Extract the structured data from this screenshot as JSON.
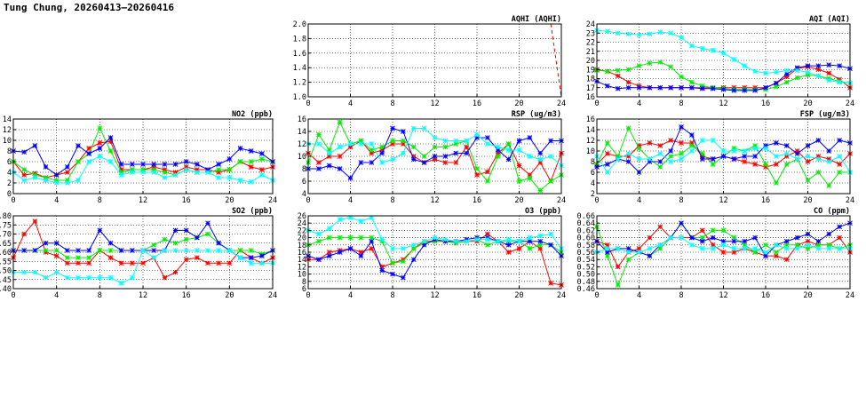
{
  "page": {
    "title": "Tung Chung, 20260413–20260416"
  },
  "colors": {
    "day1": "#ff0000",
    "day2": "#00ee00",
    "day3": "#0000ff",
    "day4": "#00ffff",
    "aqhi": "#ff0000"
  },
  "chart_data": [
    {
      "id": "aqhi",
      "type": "line",
      "title": "AQHI (AQHI)",
      "xlim": [
        0,
        24
      ],
      "xticks": [
        0,
        4,
        8,
        12,
        16,
        20,
        24
      ],
      "ylim": [
        1.0,
        2.0
      ],
      "yticks": [
        "1.0",
        "1.2",
        "1.4",
        "1.6",
        "1.8",
        "2.0"
      ],
      "grid": true,
      "series": [
        {
          "color_key": "aqhi",
          "dashed": true,
          "x": [
            0,
            1,
            2,
            3,
            4,
            5,
            6,
            7,
            8,
            9,
            10,
            11,
            12,
            13,
            14,
            15,
            16,
            17,
            18,
            19,
            20,
            21,
            22,
            23,
            24
          ],
          "values": [
            2,
            2,
            2,
            2,
            2,
            2,
            2,
            2,
            2,
            2,
            2,
            2,
            2,
            2,
            2,
            2,
            2,
            2,
            2,
            2,
            2,
            2,
            2,
            2,
            1
          ]
        }
      ]
    },
    {
      "id": "aqi",
      "type": "line",
      "title": "AQI (AQI)",
      "xlim": [
        0,
        24
      ],
      "xticks": [
        0,
        4,
        8,
        12,
        16,
        20,
        24
      ],
      "ylim": [
        16,
        24
      ],
      "yticks": [
        "16",
        "17",
        "18",
        "19",
        "20",
        "21",
        "22",
        "23",
        "24"
      ],
      "grid": true,
      "series": [
        {
          "color_key": "day1",
          "values": [
            19,
            18.8,
            18.3,
            17.6,
            17.2,
            17,
            17,
            17,
            17,
            17,
            17,
            17,
            17,
            17,
            17,
            17,
            17,
            17.5,
            18.2,
            19.1,
            19.3,
            19,
            18.6,
            17.9,
            17
          ]
        },
        {
          "color_key": "day2",
          "values": [
            18.9,
            18.8,
            18.9,
            19,
            19.4,
            19.7,
            19.8,
            19.3,
            18.2,
            17.6,
            17.2,
            17,
            16.9,
            16.8,
            16.8,
            16.8,
            16.8,
            17.1,
            17.6,
            18.1,
            18.4,
            18.3,
            18,
            17.7,
            17.5
          ]
        },
        {
          "color_key": "day3",
          "values": [
            17.7,
            17.2,
            16.9,
            17,
            17,
            17,
            17,
            17,
            17,
            17,
            16.9,
            16.9,
            16.8,
            16.7,
            16.7,
            16.7,
            17,
            17.5,
            18.5,
            19.2,
            19.4,
            19.4,
            19.5,
            19.4,
            19.1
          ]
        },
        {
          "color_key": "day4",
          "values": [
            23.3,
            23.2,
            23,
            22.9,
            22.8,
            22.9,
            23.1,
            23,
            22.5,
            21.6,
            21.3,
            21.1,
            20.8,
            20.1,
            19.4,
            18.8,
            18.6,
            18.7,
            18.9,
            18.9,
            18.7,
            18.3,
            17.8,
            17.6,
            17.5
          ]
        }
      ]
    },
    {
      "id": "no2",
      "type": "line",
      "title": "NO2 (ppb)",
      "xlim": [
        0,
        24
      ],
      "xticks": [
        0,
        4,
        8,
        12,
        16,
        20,
        24
      ],
      "ylim": [
        0,
        14
      ],
      "yticks": [
        "0",
        "2",
        "4",
        "6",
        "8",
        "10",
        "12",
        "14"
      ],
      "grid": true,
      "series": [
        {
          "color_key": "day1",
          "values": [
            6,
            3.5,
            3.8,
            3,
            3.5,
            4,
            6,
            8.5,
            9.5,
            9.8,
            4.5,
            4.5,
            4.5,
            5,
            4.5,
            4,
            5,
            4.5,
            4.5,
            4,
            4.5,
            6,
            5,
            4.5,
            5
          ]
        },
        {
          "color_key": "day2",
          "values": [
            6,
            4.5,
            3.5,
            3,
            2.5,
            2.5,
            6,
            7.5,
            12.3,
            8,
            4,
            4.5,
            4.5,
            4.5,
            4,
            3.5,
            4.5,
            4,
            4,
            4.5,
            4.5,
            6,
            6,
            6.5,
            6
          ]
        },
        {
          "color_key": "day3",
          "values": [
            8,
            7.8,
            9,
            5,
            3.5,
            5,
            9,
            7.5,
            8.5,
            10.5,
            5.5,
            5.5,
            5.5,
            5.5,
            5.5,
            5.5,
            6,
            5.5,
            4.5,
            5.5,
            6.5,
            8.5,
            8,
            7.5,
            6
          ]
        },
        {
          "color_key": "day4",
          "values": [
            4,
            2.5,
            3,
            2.5,
            2,
            2,
            2.5,
            6,
            7,
            6,
            3.5,
            4,
            4,
            4,
            3,
            3.5,
            4.5,
            4,
            4,
            3,
            3,
            2.5,
            2.2,
            3.5,
            2.5
          ]
        }
      ]
    },
    {
      "id": "rsp",
      "type": "line",
      "title": "RSP (ug/m3)",
      "xlim": [
        0,
        24
      ],
      "xticks": [
        0,
        4,
        8,
        12,
        16,
        20,
        24
      ],
      "ylim": [
        4,
        16
      ],
      "yticks": [
        "4",
        "6",
        "8",
        "10",
        "12",
        "14",
        "16"
      ],
      "grid": true,
      "series": [
        {
          "color_key": "day1",
          "values": [
            10.5,
            9,
            10,
            10,
            11.5,
            12.5,
            10.5,
            11,
            12,
            12,
            10,
            9,
            9.5,
            9,
            9,
            11.5,
            7,
            7.5,
            10.5,
            12,
            8.5,
            7,
            9,
            6,
            10.5
          ]
        },
        {
          "color_key": "day2",
          "values": [
            9,
            13.5,
            11,
            15.5,
            12,
            12.5,
            11,
            11.5,
            12.5,
            12.5,
            11.5,
            10,
            11.5,
            11.5,
            12,
            12.5,
            8,
            6,
            10,
            12,
            6,
            6.5,
            4.5,
            6,
            7
          ]
        },
        {
          "color_key": "day3",
          "values": [
            8,
            8,
            8.5,
            8,
            6.5,
            9,
            9,
            10.5,
            14.5,
            14,
            9.5,
            9,
            10,
            10,
            10.5,
            10.5,
            13,
            13,
            11,
            9.5,
            12.5,
            13,
            10.5,
            12.5,
            12.5
          ]
        },
        {
          "color_key": "day4",
          "values": [
            12,
            12,
            10.5,
            11.5,
            12,
            12,
            12,
            9,
            9.5,
            10.5,
            14.5,
            14.5,
            13,
            12.5,
            12.5,
            12.5,
            13.5,
            12,
            11.5,
            11,
            11,
            10,
            9.5,
            10,
            8.5
          ]
        }
      ]
    },
    {
      "id": "fsp",
      "type": "line",
      "title": "FSP (ug/m3)",
      "xlim": [
        0,
        24
      ],
      "xticks": [
        0,
        4,
        8,
        12,
        16,
        20,
        24
      ],
      "ylim": [
        2,
        16
      ],
      "yticks": [
        "2",
        "4",
        "6",
        "8",
        "10",
        "12",
        "14",
        "16"
      ],
      "grid": true,
      "series": [
        {
          "color_key": "day1",
          "values": [
            7.5,
            9.5,
            9,
            9,
            11,
            11.5,
            11,
            12,
            11.5,
            11.5,
            9,
            8.5,
            9,
            8.5,
            8,
            7.5,
            7,
            7.5,
            9,
            10,
            8,
            9,
            8.5,
            7.5,
            9.5
          ]
        },
        {
          "color_key": "day2",
          "values": [
            7.5,
            11.5,
            9,
            14.3,
            10.5,
            8.5,
            7,
            9,
            9.5,
            11,
            9.5,
            7.5,
            9,
            10.5,
            10,
            11,
            7.5,
            4,
            7.5,
            8.5,
            4.5,
            6,
            3.5,
            6,
            6
          ]
        },
        {
          "color_key": "day3",
          "values": [
            7,
            7.5,
            8.5,
            8,
            6,
            8,
            8,
            10,
            14.5,
            13,
            8.5,
            8.5,
            9,
            8.5,
            9,
            9,
            11,
            11.5,
            11,
            9.5,
            11,
            12,
            10,
            12,
            11.5
          ]
        },
        {
          "color_key": "day4",
          "values": [
            9,
            6,
            8.5,
            9.5,
            8.5,
            8.5,
            9.5,
            8,
            8.5,
            10,
            12,
            12,
            10,
            10,
            10,
            10.5,
            10.5,
            9,
            9.5,
            8.5,
            9,
            8.5,
            8,
            9,
            6
          ]
        }
      ]
    },
    {
      "id": "so2",
      "type": "line",
      "title": "SO2 (ppb)",
      "xlim": [
        0,
        24
      ],
      "xticks": [
        0,
        4,
        8,
        12,
        16,
        20,
        24
      ],
      "ylim": [
        0.4,
        0.8
      ],
      "yticks": [
        "0.40",
        "0.45",
        "0.50",
        "0.55",
        "0.60",
        "0.65",
        "0.70",
        "0.75",
        "0.80"
      ],
      "grid": true,
      "series": [
        {
          "color_key": "day1",
          "values": [
            0.57,
            0.7,
            0.77,
            0.6,
            0.58,
            0.54,
            0.54,
            0.54,
            0.61,
            0.57,
            0.54,
            0.54,
            0.54,
            0.57,
            0.46,
            0.49,
            0.56,
            0.57,
            0.54,
            0.54,
            0.54,
            0.61,
            0.57,
            0.54,
            0.57
          ]
        },
        {
          "color_key": "day2",
          "values": [
            0.61,
            0.61,
            0.61,
            0.61,
            0.61,
            0.57,
            0.57,
            0.57,
            0.61,
            0.61,
            0.61,
            0.61,
            0.61,
            0.64,
            0.67,
            0.65,
            0.67,
            0.68,
            0.7,
            0.65,
            0.61,
            0.61,
            0.61,
            0.59,
            0.61
          ]
        },
        {
          "color_key": "day3",
          "values": [
            0.61,
            0.61,
            0.61,
            0.65,
            0.65,
            0.61,
            0.61,
            0.61,
            0.72,
            0.65,
            0.61,
            0.61,
            0.61,
            0.61,
            0.61,
            0.72,
            0.72,
            0.68,
            0.76,
            0.65,
            0.61,
            0.57,
            0.57,
            0.58,
            0.61
          ]
        },
        {
          "color_key": "day4",
          "values": [
            0.49,
            0.49,
            0.49,
            0.46,
            0.49,
            0.46,
            0.46,
            0.46,
            0.46,
            0.46,
            0.43,
            0.46,
            0.61,
            0.57,
            0.61,
            0.61,
            0.61,
            0.61,
            0.61,
            0.61,
            0.61,
            0.57,
            0.54,
            0.54,
            0.54
          ]
        }
      ]
    },
    {
      "id": "o3",
      "type": "line",
      "title": "O3 (ppb)",
      "xlim": [
        0,
        24
      ],
      "xticks": [
        0,
        4,
        8,
        12,
        16,
        20,
        24
      ],
      "ylim": [
        6,
        26
      ],
      "yticks": [
        "6",
        "8",
        "10",
        "12",
        "14",
        "16",
        "18",
        "20",
        "22",
        "24",
        "26"
      ],
      "grid": true,
      "series": [
        {
          "color_key": "day1",
          "values": [
            14,
            14,
            16,
            16.5,
            17,
            16,
            17,
            12,
            13,
            14,
            17,
            19,
            19,
            19,
            19,
            19,
            19,
            21,
            19,
            16,
            17,
            19,
            17,
            7.5,
            7
          ]
        },
        {
          "color_key": "day2",
          "values": [
            18,
            19,
            20,
            20,
            20,
            20,
            20,
            19,
            13,
            13.5,
            17,
            18.5,
            19,
            19,
            18.5,
            19,
            19.5,
            18,
            19,
            19,
            19,
            17,
            18,
            18,
            16
          ]
        },
        {
          "color_key": "day3",
          "values": [
            15,
            14,
            15,
            16,
            17,
            15,
            19,
            11,
            10,
            9,
            14,
            18,
            19.5,
            19,
            19,
            19.5,
            20,
            20,
            19,
            18,
            19,
            19,
            19,
            18,
            15
          ]
        },
        {
          "color_key": "day4",
          "values": [
            22,
            21,
            22.5,
            25,
            25.5,
            24.5,
            25.5,
            19.5,
            17,
            17,
            18,
            19,
            20,
            19.5,
            19,
            19,
            19.5,
            19.5,
            19,
            19.5,
            19,
            20,
            20.5,
            21,
            17
          ]
        }
      ]
    },
    {
      "id": "co",
      "type": "line",
      "title": "CO (ppm)",
      "xlim": [
        0,
        24
      ],
      "xticks": [
        0,
        4,
        8,
        12,
        16,
        20,
        24
      ],
      "ylim": [
        0.46,
        0.66
      ],
      "yticks": [
        "0.46",
        "0.48",
        "0.50",
        "0.52",
        "0.54",
        "0.56",
        "0.58",
        "0.60",
        "0.62",
        "0.64",
        "0.66"
      ],
      "grid": true,
      "series": [
        {
          "color_key": "day1",
          "values": [
            0.59,
            0.58,
            0.52,
            0.56,
            0.57,
            0.6,
            0.63,
            0.6,
            0.6,
            0.6,
            0.62,
            0.58,
            0.56,
            0.56,
            0.57,
            0.56,
            0.55,
            0.55,
            0.54,
            0.58,
            0.59,
            0.58,
            0.58,
            0.6,
            0.56
          ]
        },
        {
          "color_key": "day2",
          "values": [
            0.63,
            0.55,
            0.47,
            0.54,
            0.56,
            0.55,
            0.57,
            0.6,
            0.64,
            0.6,
            0.6,
            0.62,
            0.62,
            0.6,
            0.58,
            0.56,
            0.58,
            0.56,
            0.58,
            0.58,
            0.57,
            0.58,
            0.58,
            0.57,
            0.58
          ]
        },
        {
          "color_key": "day3",
          "values": [
            0.59,
            0.56,
            0.57,
            0.57,
            0.56,
            0.55,
            0.58,
            0.6,
            0.64,
            0.6,
            0.59,
            0.6,
            0.59,
            0.59,
            0.59,
            0.6,
            0.55,
            0.58,
            0.59,
            0.6,
            0.61,
            0.59,
            0.61,
            0.63,
            0.64
          ]
        },
        {
          "color_key": "day4",
          "values": [
            0.56,
            0.57,
            0.57,
            0.56,
            0.56,
            0.57,
            0.58,
            0.6,
            0.6,
            0.58,
            0.57,
            0.57,
            0.58,
            0.57,
            0.57,
            0.57,
            0.56,
            0.58,
            0.57,
            0.57,
            0.58,
            0.57,
            0.57,
            0.57,
            0.57
          ]
        }
      ]
    }
  ]
}
